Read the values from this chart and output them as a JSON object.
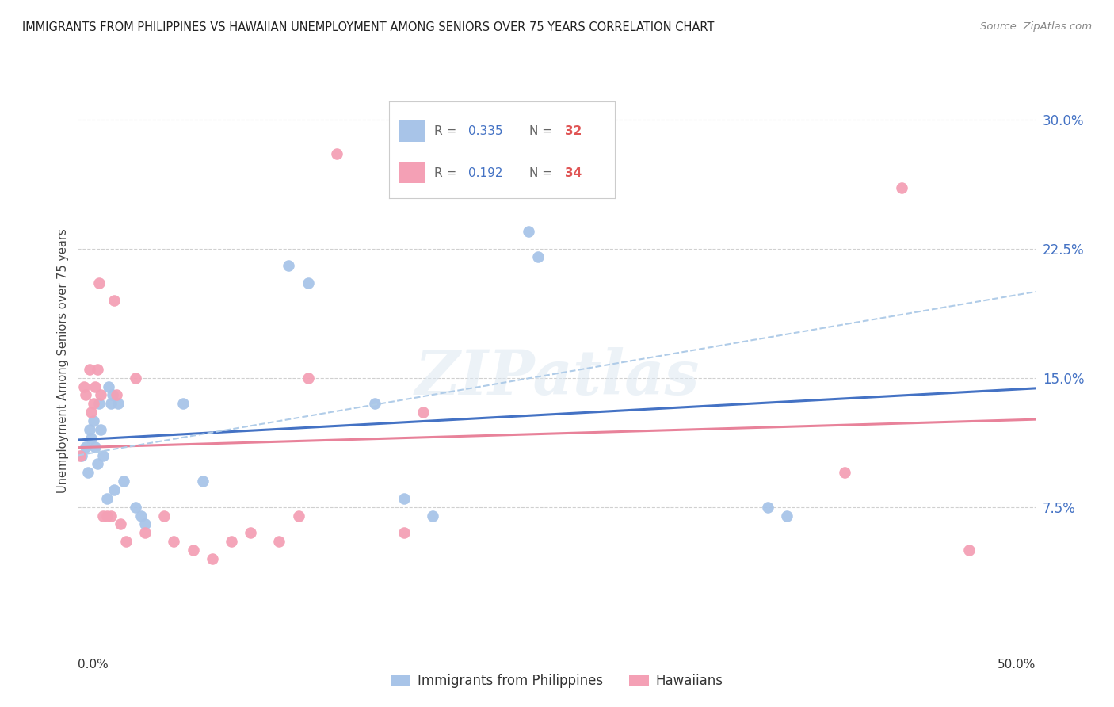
{
  "title": "IMMIGRANTS FROM PHILIPPINES VS HAWAIIAN UNEMPLOYMENT AMONG SENIORS OVER 75 YEARS CORRELATION CHART",
  "source": "Source: ZipAtlas.com",
  "ylabel": "Unemployment Among Seniors over 75 years",
  "ytick_labels": [
    "7.5%",
    "15.0%",
    "22.5%",
    "30.0%"
  ],
  "ytick_values": [
    7.5,
    15.0,
    22.5,
    30.0
  ],
  "xlim": [
    0.0,
    50.0
  ],
  "ylim": [
    0.0,
    32.0
  ],
  "legend_label1": "Immigrants from Philippines",
  "legend_label2": "Hawaiians",
  "R1": "0.335",
  "N1": "32",
  "R2": "0.192",
  "N2": "34",
  "color_blue": "#a8c4e8",
  "color_pink": "#f4a0b5",
  "line_blue": "#4472c4",
  "line_pink": "#e8829a",
  "line_dashed_color": "#b0cce8",
  "watermark": "ZIPatlas",
  "blue_x": [
    0.2,
    0.4,
    0.5,
    0.6,
    0.7,
    0.8,
    0.9,
    1.0,
    1.1,
    1.2,
    1.3,
    1.5,
    1.6,
    1.7,
    1.8,
    1.9,
    2.1,
    2.4,
    3.0,
    3.3,
    3.5,
    5.5,
    6.5,
    11.0,
    12.0,
    15.5,
    17.0,
    18.5,
    23.5,
    24.0,
    36.0,
    37.0
  ],
  "blue_y": [
    10.5,
    11.0,
    9.5,
    12.0,
    11.5,
    12.5,
    11.0,
    10.0,
    13.5,
    12.0,
    10.5,
    8.0,
    14.5,
    13.5,
    14.0,
    8.5,
    13.5,
    9.0,
    7.5,
    7.0,
    6.5,
    13.5,
    9.0,
    21.5,
    20.5,
    13.5,
    8.0,
    7.0,
    23.5,
    22.0,
    7.5,
    7.0
  ],
  "pink_x": [
    0.1,
    0.3,
    0.4,
    0.6,
    0.7,
    0.8,
    0.9,
    1.0,
    1.1,
    1.2,
    1.3,
    1.5,
    1.7,
    1.9,
    2.0,
    2.2,
    2.5,
    3.0,
    3.5,
    4.5,
    5.0,
    6.0,
    7.0,
    8.0,
    9.0,
    10.5,
    11.5,
    12.0,
    13.5,
    17.0,
    18.0,
    40.0,
    43.0,
    46.5
  ],
  "pink_y": [
    10.5,
    14.5,
    14.0,
    15.5,
    13.0,
    13.5,
    14.5,
    15.5,
    20.5,
    14.0,
    7.0,
    7.0,
    7.0,
    19.5,
    14.0,
    6.5,
    5.5,
    15.0,
    6.0,
    7.0,
    5.5,
    5.0,
    4.5,
    5.5,
    6.0,
    5.5,
    7.0,
    15.0,
    28.0,
    6.0,
    13.0,
    9.5,
    26.0,
    5.0
  ]
}
